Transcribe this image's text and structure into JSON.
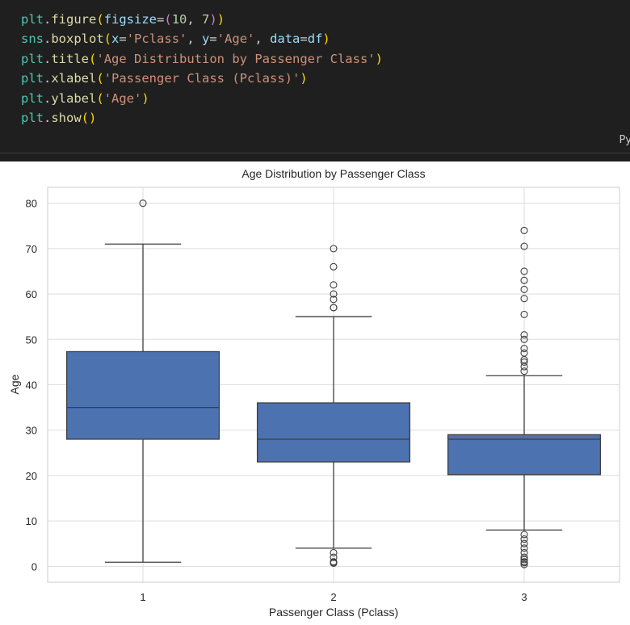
{
  "code": {
    "lines": [
      "plt.figure(figsize=(10, 7))",
      "sns.boxplot(x='Pclass', y='Age', data=df)",
      "plt.title('Age Distribution by Passenger Class')",
      "plt.xlabel('Passenger Class (Pclass)')",
      "plt.ylabel('Age')",
      "plt.show()"
    ],
    "language_tag": "Py"
  },
  "chart_data": {
    "type": "box",
    "title": "Age Distribution by Passenger Class",
    "xlabel": "Passenger Class (Pclass)",
    "ylabel": "Age",
    "ylim": [
      -3.5,
      83.5
    ],
    "yticks": [
      0,
      10,
      20,
      30,
      40,
      50,
      60,
      70,
      80
    ],
    "grid": true,
    "box_color": "#4c72b0",
    "categories": [
      "1",
      "2",
      "3"
    ],
    "boxes": [
      {
        "category": "1",
        "whisker_low": 0.9,
        "q1": 28,
        "median": 35,
        "q3": 47.3,
        "whisker_high": 71,
        "outliers": [
          80
        ]
      },
      {
        "category": "2",
        "whisker_low": 4,
        "q1": 23,
        "median": 28,
        "q3": 36,
        "whisker_high": 55,
        "outliers": [
          0.7,
          0.8,
          1,
          2,
          3,
          57,
          57,
          58.8,
          60,
          62,
          66,
          70
        ]
      },
      {
        "category": "3",
        "whisker_low": 8,
        "q1": 20.2,
        "median": 28,
        "q3": 29,
        "whisker_high": 42,
        "outliers": [
          0.4,
          0.8,
          1,
          1.5,
          2,
          3,
          4,
          5,
          6,
          7,
          43,
          44,
          45,
          45.5,
          47,
          48,
          50,
          51,
          55.5,
          59,
          61,
          63,
          65,
          70.5,
          74
        ]
      }
    ]
  }
}
